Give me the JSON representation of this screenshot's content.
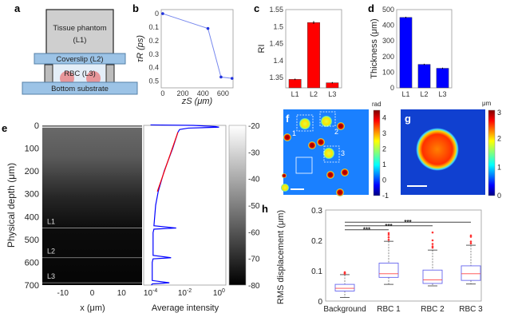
{
  "panel_labels": {
    "a": "a",
    "b": "b",
    "c": "c",
    "d": "d",
    "e": "e",
    "f": "f",
    "g": "g",
    "h": "h"
  },
  "schematic": {
    "tissue": "Tissue phantom",
    "tissue_sub": "(L1)",
    "coverslip": "Coverslip (L2)",
    "rbc": "RBC (L3)",
    "substrate": "Bottom substrate",
    "colors": {
      "tissue": "#c8c8c8",
      "glass": "#9cc3e6",
      "rbc": "#e8868a",
      "spacer": "#bdbdbd"
    }
  },
  "chart_data": [
    {
      "id": "b",
      "type": "line",
      "xlabel": "zS (μm)",
      "ylabel": "τR (ps)",
      "x": [
        0,
        450,
        580,
        690
      ],
      "y": [
        0,
        0.11,
        0.47,
        0.48
      ],
      "xlim": [
        -15,
        700
      ],
      "ylim": [
        -0.03,
        0.55
      ],
      "y_reversed": true,
      "xticks": [
        0,
        200,
        400,
        600
      ],
      "yticks": [
        0,
        0.1,
        0.2,
        0.3,
        0.4,
        0.5
      ],
      "color": "#2233dd"
    },
    {
      "id": "c",
      "type": "bar",
      "ylabel": "RI",
      "categories": [
        "L1",
        "L2",
        "L3"
      ],
      "values": [
        1.345,
        1.512,
        1.335
      ],
      "errors": [
        0.002,
        0.004,
        0.002
      ],
      "ylim": [
        1.32,
        1.55
      ],
      "yticks": [
        1.35,
        1.4,
        1.45,
        1.5,
        1.55
      ],
      "color": "#ff0000"
    },
    {
      "id": "d",
      "type": "bar",
      "ylabel": "Thickness (μm)",
      "categories": [
        "L1",
        "L2",
        "L3"
      ],
      "values": [
        450,
        150,
        125
      ],
      "errors": [
        4,
        4,
        4
      ],
      "ylim": [
        0,
        500
      ],
      "yticks": [
        0,
        100,
        200,
        300,
        400,
        500
      ],
      "color": "#0000ff"
    },
    {
      "id": "e-image",
      "type": "heatmap",
      "xlabel": "x (μm)",
      "ylabel": "Physical depth (μm)",
      "xlim": [
        -17,
        17
      ],
      "ylim": [
        0,
        700
      ],
      "xticks": [
        -10,
        0,
        10
      ],
      "yticks": [
        0,
        100,
        200,
        300,
        400,
        500,
        600,
        700
      ],
      "layer_labels": [
        {
          "label": "L1",
          "depth": 450
        },
        {
          "label": "L2",
          "depth": 580
        },
        {
          "label": "L3",
          "depth": 690
        }
      ],
      "colorbar": {
        "ticks": [
          -20,
          -30,
          -40,
          -50,
          -60,
          -70,
          -80
        ],
        "range": [
          -80,
          -20
        ],
        "colormap": "gray"
      }
    },
    {
      "id": "e-profile",
      "type": "line",
      "xlabel": "Average intensity",
      "x_scale": "log",
      "xticks": [
        "10-4",
        "10-2",
        "100"
      ],
      "xlim_log10": [
        -4.4,
        0.4
      ],
      "ylim": [
        0,
        700
      ],
      "profile": [
        [
          -2,
          -4
        ],
        [
          0,
          -1.5
        ],
        [
          5,
          -0.2
        ],
        [
          8,
          0
        ],
        [
          12,
          -1.8
        ],
        [
          18,
          -2.3
        ],
        [
          30,
          -2.4
        ],
        [
          100,
          -2.7
        ],
        [
          200,
          -3.2
        ],
        [
          290,
          -3.55
        ],
        [
          350,
          -3.7
        ],
        [
          440,
          -3.8
        ],
        [
          450,
          -2.5
        ],
        [
          455,
          -3.8
        ],
        [
          470,
          -3.85
        ],
        [
          570,
          -3.85
        ],
        [
          580,
          -2.8
        ],
        [
          585,
          -3.85
        ],
        [
          600,
          -3.9
        ],
        [
          680,
          -3.9
        ],
        [
          690,
          -2.9
        ],
        [
          695,
          -3.9
        ],
        [
          700,
          -3.95
        ]
      ],
      "fit": [
        [
          30,
          -2.4
        ],
        [
          290,
          -3.6
        ]
      ],
      "colors": {
        "profile": "#0000ff",
        "fit": "#ff0000"
      }
    },
    {
      "id": "f",
      "type": "heatmap",
      "colorbar": {
        "unit": "rad",
        "ticks": [
          4,
          3,
          2,
          1,
          0,
          -1
        ],
        "range": [
          -1,
          4.5
        ],
        "colormap": "jet"
      },
      "roi_labels": [
        "1",
        "2",
        "3"
      ]
    },
    {
      "id": "g",
      "type": "heatmap",
      "colorbar": {
        "unit": "μm",
        "ticks": [
          3,
          2,
          1,
          0
        ],
        "range": [
          0,
          3
        ],
        "colormap": "jet"
      }
    },
    {
      "id": "h",
      "type": "box",
      "ylabel": "RMS displacement (μm)",
      "categories": [
        "Background",
        "RBC 1",
        "RBC 2",
        "RBC 3"
      ],
      "ylim": [
        0,
        0.3
      ],
      "yticks": [
        0,
        0.1,
        0.2,
        0.3
      ],
      "boxes": [
        {
          "min": 0.012,
          "q1": 0.033,
          "median": 0.042,
          "q3": 0.055,
          "max": 0.087,
          "outliers": [
            0.09,
            0.093,
            0.095
          ]
        },
        {
          "min": 0.055,
          "q1": 0.078,
          "median": 0.09,
          "q3": 0.125,
          "max": 0.197,
          "outliers": [
            0.202,
            0.21,
            0.218,
            0.224
          ]
        },
        {
          "min": 0.05,
          "q1": 0.058,
          "median": 0.07,
          "q3": 0.102,
          "max": 0.168,
          "outliers": [
            0.176,
            0.18,
            0.188,
            0.2,
            0.226
          ]
        },
        {
          "min": 0.056,
          "q1": 0.068,
          "median": 0.09,
          "q3": 0.116,
          "max": 0.184,
          "outliers": [
            0.19,
            0.196,
            0.212,
            0.216
          ]
        }
      ],
      "significance": [
        {
          "from": "Background",
          "to": "RBC 1",
          "label": "***"
        },
        {
          "from": "Background",
          "to": "RBC 2",
          "label": "***"
        },
        {
          "from": "Background",
          "to": "RBC 3",
          "label": "***"
        }
      ],
      "colors": {
        "box": "#6666ee",
        "median": "#ff4444",
        "outlier": "#ff3333"
      }
    }
  ]
}
